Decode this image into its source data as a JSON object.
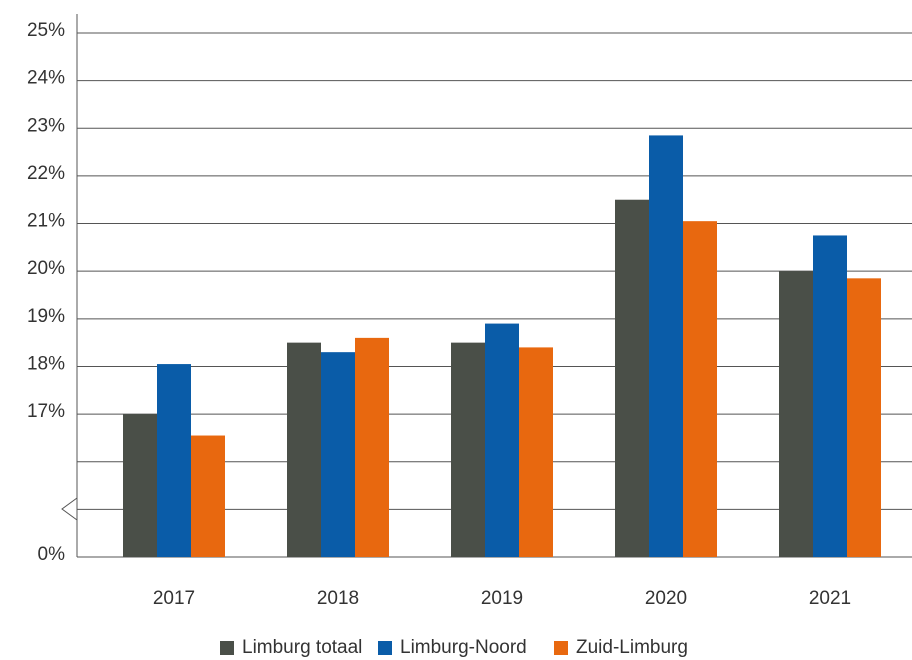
{
  "chart_data": {
    "type": "bar",
    "categories": [
      "2017",
      "2018",
      "2019",
      "2020",
      "2021"
    ],
    "series": [
      {
        "name": "Limburg totaal",
        "color": "#4a4f48",
        "values": [
          17.0,
          18.5,
          18.5,
          21.5,
          20.0
        ]
      },
      {
        "name": "Limburg-Noord",
        "color": "#0a5ca8",
        "values": [
          18.05,
          18.3,
          18.9,
          22.85,
          20.75
        ]
      },
      {
        "name": "Zuid-Limburg",
        "color": "#e8680f",
        "values": [
          16.55,
          18.6,
          18.4,
          21.05,
          19.85
        ]
      }
    ],
    "ylim": [
      0,
      25
    ],
    "axis_break": [
      0,
      14
    ],
    "yticks": [
      {
        "value": 0,
        "label": "0%"
      },
      {
        "value": 17,
        "label": "17%"
      },
      {
        "value": 18,
        "label": "18%"
      },
      {
        "value": 19,
        "label": "19%"
      },
      {
        "value": 20,
        "label": "20%"
      },
      {
        "value": 21,
        "label": "21%"
      },
      {
        "value": 22,
        "label": "22%"
      },
      {
        "value": 23,
        "label": "23%"
      },
      {
        "value": 24,
        "label": "24%"
      },
      {
        "value": 25,
        "label": "25%"
      }
    ],
    "minor_yticks": [
      15,
      16
    ],
    "grid": true,
    "legend": "bottom"
  }
}
